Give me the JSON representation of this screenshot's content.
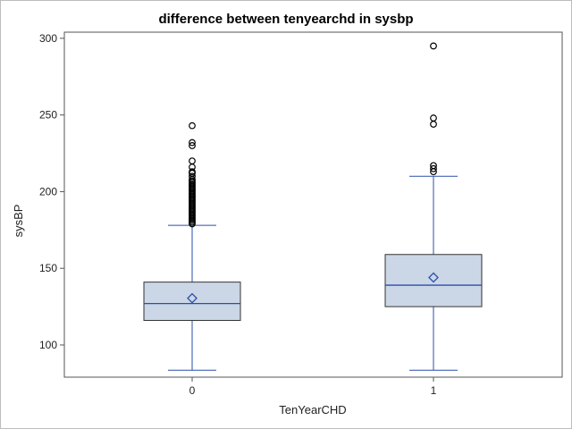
{
  "chart_data": {
    "type": "boxplot",
    "title": "difference between tenyearchd in sysbp",
    "xlabel": "TenYearCHD",
    "ylabel": "sysBP",
    "ylim": [
      79,
      304
    ],
    "yticks": [
      100,
      150,
      200,
      250,
      300
    ],
    "categories": [
      "0",
      "1"
    ],
    "colors": {
      "box_fill": "#cbd6e6",
      "box_stroke": "#333333",
      "median": "#2a4fa8",
      "whisker": "#2a4fa8",
      "mean_marker": "#2a4fa8",
      "outlier_stroke": "#000000",
      "frame": "#555555"
    },
    "series": [
      {
        "name": "0",
        "min": 83.5,
        "q1": 116,
        "median": 127,
        "q3": 141,
        "max": 178,
        "mean": 130.5,
        "outliers": [
          179,
          180,
          181,
          182,
          183,
          184,
          185,
          186,
          187,
          188,
          189,
          190,
          191,
          192,
          193,
          194,
          195,
          196,
          197,
          198,
          199,
          200,
          201,
          202,
          203,
          204,
          205,
          206,
          207,
          208,
          210,
          212,
          213,
          216,
          220,
          230,
          232,
          243
        ]
      },
      {
        "name": "1",
        "min": 83.5,
        "q1": 125,
        "median": 139,
        "q3": 159,
        "max": 210,
        "mean": 144,
        "outliers": [
          213,
          215,
          217,
          244,
          248,
          295
        ]
      }
    ]
  }
}
